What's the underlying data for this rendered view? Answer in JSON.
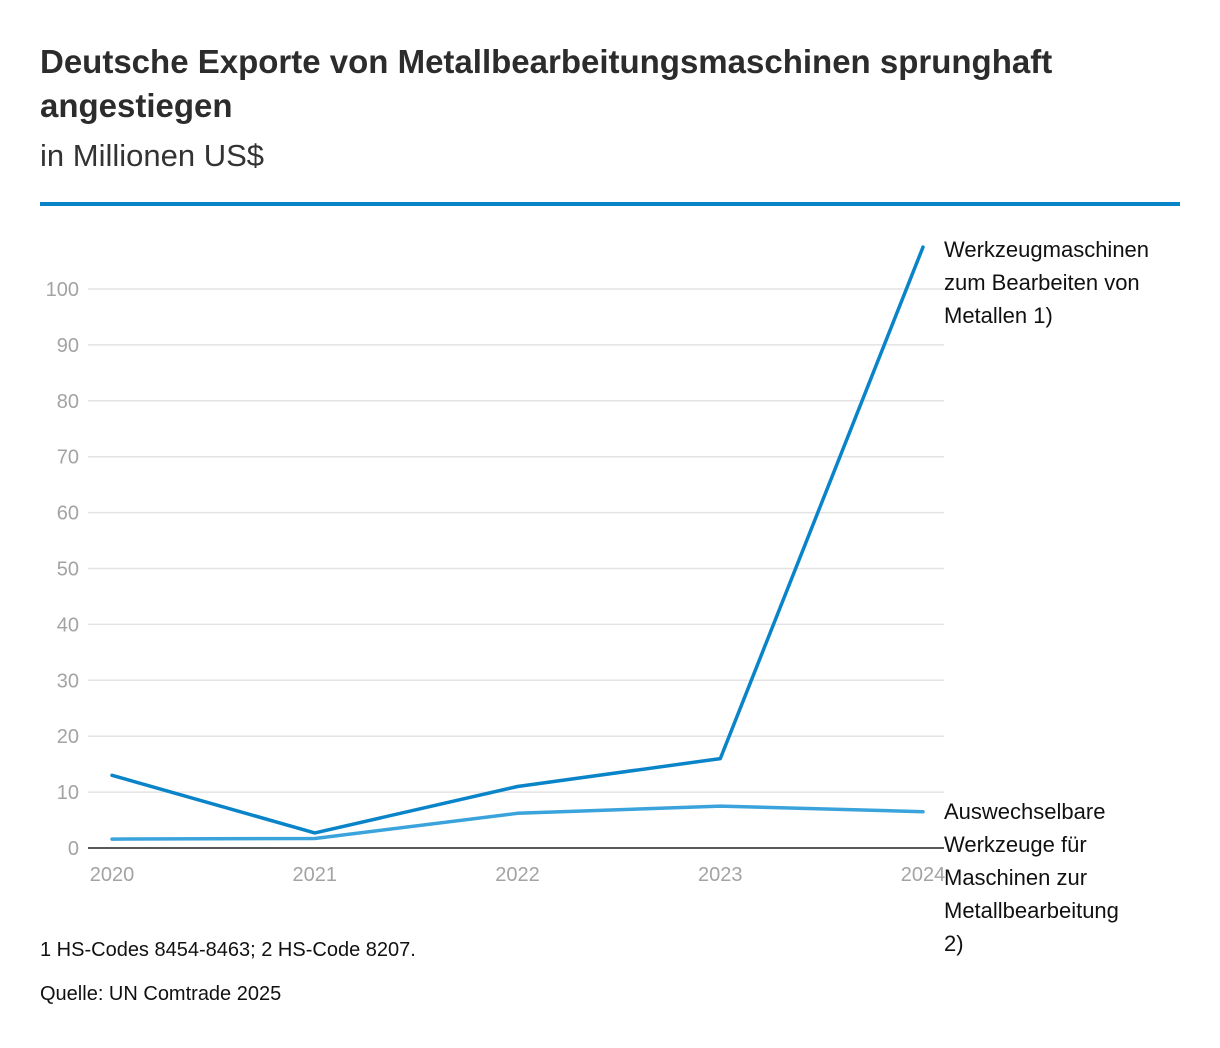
{
  "chart_data": {
    "type": "line",
    "title": "Deutsche Exporte von Metallbearbeitungsmaschinen sprunghaft angestiegen",
    "subtitle": "in Millionen US$",
    "x": [
      "2020",
      "2021",
      "2022",
      "2023",
      "2024"
    ],
    "ylim": [
      0,
      100
    ],
    "yticks": [
      0,
      10,
      20,
      30,
      40,
      50,
      60,
      70,
      80,
      90,
      100
    ],
    "grid": true,
    "series": [
      {
        "name": "Werkzeugmaschinen zum Bearbeiten von Metallen 1)",
        "label_lines": [
          "Werkzeugmaschinen",
          "zum Bearbeiten von",
          "Metallen 1)"
        ],
        "color": "#0a84c8",
        "values": [
          13,
          2.7,
          11,
          16,
          107.5
        ]
      },
      {
        "name": "Auswechselbare Werkzeuge für Maschinen zur Metallbearbeitung 2)",
        "label_lines": [
          "Auswechselbare",
          "Werkzeuge für",
          "Maschinen zur",
          "Metallbearbeitung",
          "2)"
        ],
        "color": "#3aa3dc",
        "values": [
          1.6,
          1.7,
          6.2,
          7.5,
          6.5
        ]
      }
    ]
  },
  "footnote": "1 HS-Codes 8454-8463; 2 HS-Code 8207.",
  "source": "Quelle: UN Comtrade 2025",
  "colors": {
    "accent": "#0a84c8",
    "grid": "#e3e3e3",
    "axis": "#222222",
    "tick_text": "#a3a3a3"
  }
}
